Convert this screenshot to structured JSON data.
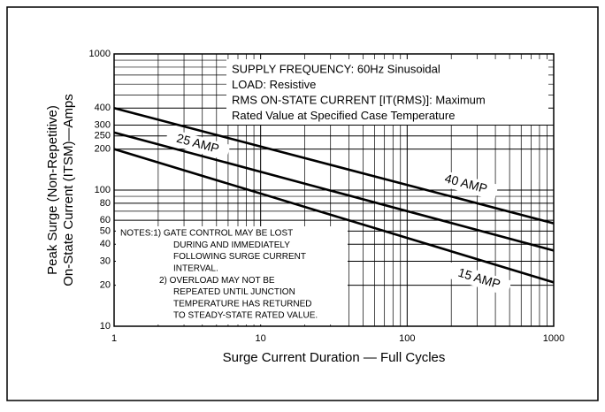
{
  "chart_data": {
    "type": "line",
    "xlabel": "Surge Current Duration — Full Cycles",
    "ylabel": [
      "Peak Surge (Non-Repetitive)",
      "On-State Current (ITSM)—Amps"
    ],
    "log_x": true,
    "log_y": true,
    "grid": true,
    "xlim": [
      1,
      1000
    ],
    "ylim": [
      10,
      1000
    ],
    "xticks": [
      1,
      10,
      100,
      1000
    ],
    "yticks": [
      10,
      20,
      30,
      40,
      50,
      60,
      80,
      100,
      200,
      250,
      300,
      400,
      1000
    ],
    "xminor": [
      2,
      3,
      4,
      5,
      6,
      7,
      8,
      9,
      20,
      30,
      40,
      50,
      60,
      70,
      80,
      90,
      200,
      300,
      400,
      500,
      600,
      700,
      800,
      900
    ],
    "yminor": [
      70,
      90,
      500,
      600,
      700,
      800,
      900
    ],
    "x": [
      1,
      1000
    ],
    "series": [
      {
        "name": "40 AMP",
        "color": "#000000",
        "values": [
          400,
          57
        ]
      },
      {
        "name": "25 AMP",
        "color": "#000000",
        "values": [
          265,
          36
        ]
      },
      {
        "name": "15 AMP",
        "color": "#000000",
        "values": [
          200,
          21
        ]
      }
    ],
    "annotations": [
      "SUPPLY FREQUENCY: 60Hz Sinusoidal",
      "LOAD: Resistive",
      "RMS ON-STATE CURRENT [IT(RMS)]: Maximum",
      "Rated Value at Specified Case Temperature"
    ],
    "notes": [
      "NOTES:1) GATE CONTROL MAY BE LOST",
      "DURING AND IMMEDIATELY",
      "FOLLOWING SURGE CURRENT",
      "INTERVAL.",
      "2) OVERLOAD MAY NOT BE",
      "REPEATED UNTIL JUNCTION",
      "TEMPERATURE HAS RETURNED",
      "TO STEADY-STATE RATED VALUE."
    ]
  }
}
